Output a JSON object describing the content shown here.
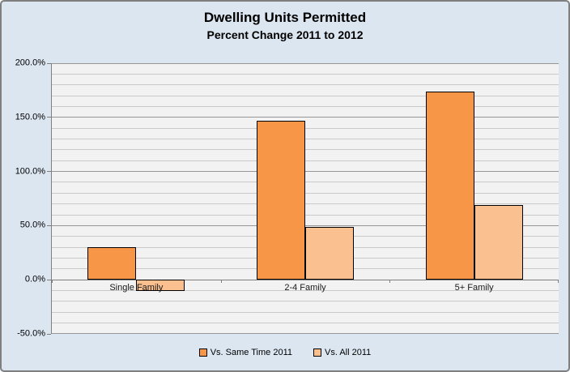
{
  "chart_data": {
    "type": "bar",
    "title": "Dwelling Units Permitted",
    "subtitle": "Percent Change 2011 to 2012",
    "categories": [
      "Single Family",
      "2-4 Family",
      "5+ Family"
    ],
    "series": [
      {
        "name": "Vs. Same Time 2011",
        "color": "#F79646",
        "values": [
          30,
          147,
          174
        ]
      },
      {
        "name": "Vs. All 2011",
        "color": "#FAC090",
        "values": [
          -10,
          49,
          69
        ]
      }
    ],
    "xlabel": "",
    "ylabel": "",
    "ylim": [
      -50,
      200
    ],
    "y_major_step": 50,
    "y_minor_step": 10,
    "y_tick_labels": [
      "200.0%",
      "150.0%",
      "100.0%",
      "50.0%",
      "0.0%",
      "-50.0%"
    ],
    "grid": "on",
    "legend_position": "bottom-center"
  },
  "colors": {
    "chart_background": "#DCE6F1",
    "plot_background": "#F2F2F2",
    "major_gridline": "#969696",
    "minor_gridline": "#C9C9C9",
    "axis_line": "#7F7F7F",
    "bar_border": "#000000",
    "chart_border": "#7F7F7F",
    "series_1": "#F79646",
    "series_2": "#FAC090"
  }
}
